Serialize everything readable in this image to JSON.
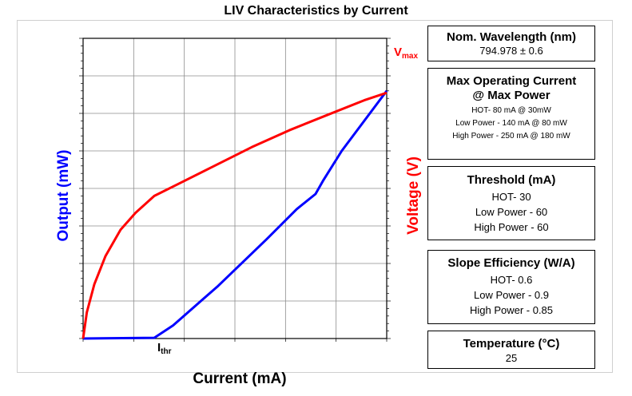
{
  "title": "LIV Characteristics by Current",
  "chart_data": {
    "type": "line",
    "title": "LIV Characteristics by Current",
    "xlabel": "Current (mA)",
    "ylabel_left": "Output (mW)",
    "ylabel_right": "Voltage (V)",
    "grid": true,
    "x_ticks_labeled": false,
    "y_ticks_labeled": false,
    "series": [
      {
        "name": "Output (mW)",
        "color": "#0000ff",
        "axis": "left",
        "x": [
          0,
          19,
          24,
          36,
          49,
          57,
          62,
          64,
          69,
          81
        ],
        "y": [
          0,
          0.2,
          3.5,
          14,
          26.5,
          34.5,
          38.5,
          42,
          50,
          66
        ]
      },
      {
        "name": "Voltage (V)",
        "color": "#ff0000",
        "axis": "right",
        "x": [
          0,
          1,
          3,
          6,
          10,
          14,
          19,
          25,
          35,
          45,
          55,
          65,
          75,
          81
        ],
        "y": [
          0,
          7,
          14.5,
          22,
          29,
          33.5,
          38,
          41,
          46,
          51,
          55.5,
          59.5,
          63.5,
          65.5
        ]
      }
    ],
    "annotations": [
      {
        "text": "V",
        "sub": "max",
        "color": "#ff0000"
      },
      {
        "text": "I",
        "sub": "thr",
        "color": "#000000"
      }
    ]
  },
  "info_boxes": {
    "wavelength": {
      "heading": "Nom. Wavelength (nm)",
      "lines": [
        "794.978 ± 0.6"
      ]
    },
    "max_current": {
      "heading1": "Max Operating Current",
      "heading2": "@ Max Power",
      "lines": [
        "HOT- 80 mA @ 30mW",
        "Low Power - 140 mA @ 80 mW",
        "High Power - 250 mA @ 180 mW"
      ]
    },
    "threshold": {
      "heading": "Threshold (mA)",
      "lines": [
        "HOT- 30",
        "Low Power - 60",
        "High Power - 60"
      ]
    },
    "slope": {
      "heading": "Slope Efficiency (W/A)",
      "lines": [
        "HOT- 0.6",
        "Low Power - 0.9",
        "High Power - 0.85"
      ]
    },
    "temperature": {
      "heading": "Temperature (°C)",
      "lines": [
        "25"
      ]
    }
  }
}
